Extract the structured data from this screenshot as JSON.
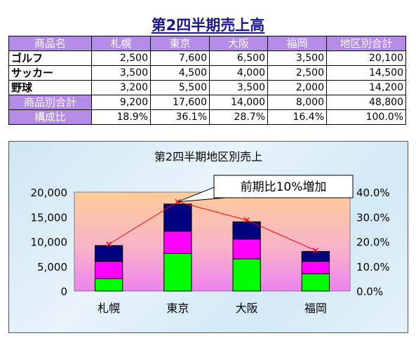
{
  "page_title": "第2四半期売上高",
  "table": {
    "headers": [
      "商品名",
      "札幌",
      "東京",
      "大阪",
      "福岡",
      "地区別合計"
    ],
    "rows": [
      {
        "label": "ゴルフ",
        "values": [
          "2,500",
          "7,600",
          "6,500",
          "3,500",
          "20,100"
        ]
      },
      {
        "label": "サッカー",
        "values": [
          "3,500",
          "4,500",
          "4,000",
          "2,500",
          "14,500"
        ]
      },
      {
        "label": "野球",
        "values": [
          "3,200",
          "5,500",
          "3,500",
          "2,000",
          "14,200"
        ]
      }
    ],
    "total_row": {
      "label": "商品別合計",
      "values": [
        "9,200",
        "17,600",
        "14,000",
        "8,000",
        "48,800"
      ]
    },
    "ratio_row": {
      "label": "構成比",
      "values": [
        "18.9%",
        "36.1%",
        "28.7%",
        "16.4%",
        "100.0%"
      ]
    }
  },
  "chart_data": {
    "type": "bar",
    "title": "第2四半期地区別売上",
    "categories": [
      "札幌",
      "東京",
      "大阪",
      "福岡"
    ],
    "series": [
      {
        "name": "ゴルフ",
        "values": [
          2500,
          7600,
          6500,
          3500
        ],
        "color": "#00ff00"
      },
      {
        "name": "サッカー",
        "values": [
          3500,
          4500,
          4000,
          2500
        ],
        "color": "#ff00ff"
      },
      {
        "name": "野球",
        "values": [
          3200,
          5500,
          3500,
          2000
        ],
        "color": "#000080"
      }
    ],
    "stacked": true,
    "line_series": {
      "values": [
        18.9,
        36.1,
        28.7,
        16.4
      ],
      "color": "#ff0000",
      "axis": "secondary"
    },
    "ylim": [
      0,
      20000
    ],
    "y_ticks": [
      "0",
      "5,000",
      "10,000",
      "15,000",
      "20,000"
    ],
    "y2lim": [
      0,
      40
    ],
    "y2_ticks": [
      "0.0%",
      "10.0%",
      "20.0%",
      "30.0%",
      "40.0%"
    ],
    "annotation": "前期比10%増加",
    "grid": false,
    "legend": "none"
  }
}
